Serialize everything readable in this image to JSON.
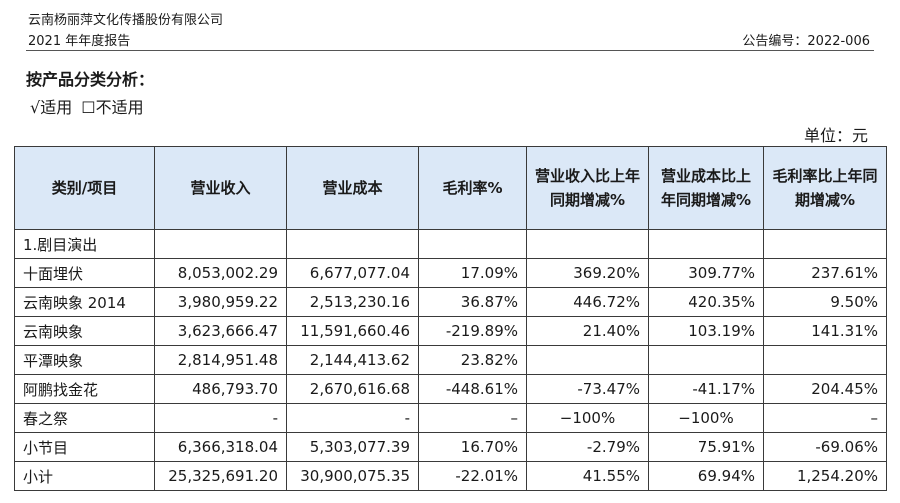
{
  "header": {
    "company": "云南杨丽萍文化传播股份有限公司",
    "report": "2021 年年度报告",
    "notice_no": "公告编号：2022-006"
  },
  "section": {
    "title": "按产品分类分析：",
    "applicable": "√适用",
    "not_applicable": "☐不适用",
    "unit": "单位：元"
  },
  "table": {
    "headers": [
      "类别/项目",
      "营业收入",
      "营业成本",
      "毛利率%",
      "营业收入比上年同期增减%",
      "营业成本比上年同期增减%",
      "毛利率比上年同期增减%"
    ],
    "rows": [
      {
        "cat": "1.剧目演出",
        "rev": "",
        "cost": "",
        "gm": "",
        "rev_chg": "",
        "cost_chg": "",
        "gm_chg": ""
      },
      {
        "cat": "十面埋伏",
        "rev": "8,053,002.29",
        "cost": "6,677,077.04",
        "gm": "17.09%",
        "rev_chg": "369.20%",
        "cost_chg": "309.77%",
        "gm_chg": "237.61%"
      },
      {
        "cat": "云南映象 2014",
        "rev": "3,980,959.22",
        "cost": "2,513,230.16",
        "gm": "36.87%",
        "rev_chg": "446.72%",
        "cost_chg": "420.35%",
        "gm_chg": "9.50%"
      },
      {
        "cat": "云南映象",
        "rev": "3,623,666.47",
        "cost": "11,591,660.46",
        "gm": "-219.89%",
        "rev_chg": "21.40%",
        "cost_chg": "103.19%",
        "gm_chg": "141.31%"
      },
      {
        "cat": "平潭映象",
        "rev": "2,814,951.48",
        "cost": "2,144,413.62",
        "gm": "23.82%",
        "rev_chg": "",
        "cost_chg": "",
        "gm_chg": ""
      },
      {
        "cat": "阿鹏找金花",
        "rev": "486,793.70",
        "cost": "2,670,616.68",
        "gm": "-448.61%",
        "rev_chg": "-73.47%",
        "cost_chg": "-41.17%",
        "gm_chg": "204.45%"
      },
      {
        "cat": "春之祭",
        "rev": "-",
        "cost": "-",
        "gm": "–",
        "rev_chg": "−100%",
        "cost_chg": "−100%",
        "gm_chg": "–"
      },
      {
        "cat": "小节目",
        "rev": "6,366,318.04",
        "cost": "5,303,077.39",
        "gm": "16.70%",
        "rev_chg": "-2.79%",
        "cost_chg": "75.91%",
        "gm_chg": "-69.06%"
      },
      {
        "cat": "小计",
        "rev": "25,325,691.20",
        "cost": "30,900,075.35",
        "gm": "-22.01%",
        "rev_chg": "41.55%",
        "cost_chg": "69.94%",
        "gm_chg": "1,254.20%"
      }
    ]
  }
}
